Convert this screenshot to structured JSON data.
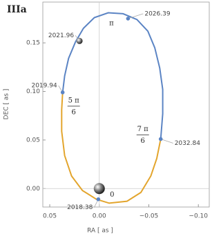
{
  "chart_data": {
    "type": "orbit",
    "title": "IIIa",
    "x_label": "RA [ as ]",
    "y_label": "DEC [ as ]",
    "xlim": [
      0.057,
      -0.111
    ],
    "ylim": [
      -0.019,
      0.192
    ],
    "xticks": [
      0.05,
      {
        "value": 0,
        "label": "0.00"
      },
      {
        "value": -0.05,
        "label": "−0.05"
      },
      {
        "value": -0.1,
        "label": "−0.10"
      }
    ],
    "yticks": [
      {
        "value": 0,
        "label": "0.00"
      },
      0.05,
      {
        "value": 0.1,
        "label": "0.10"
      },
      0.15
    ],
    "origin_lines": true,
    "series": [
      {
        "color": "#5b84c4",
        "x": [
          0.037,
          0.035,
          0.031,
          0.024,
          0.016,
          0.005,
          -0.009,
          -0.024,
          -0.038,
          -0.049,
          -0.056,
          -0.061,
          -0.064,
          -0.064,
          -0.062
        ],
        "y": [
          0.099,
          0.116,
          0.134,
          0.151,
          0.165,
          0.176,
          0.181,
          0.18,
          0.174,
          0.162,
          0.145,
          0.124,
          0.102,
          0.077,
          0.051
        ]
      },
      {
        "color": "#e3a52d",
        "x": [
          -0.062,
          -0.058,
          -0.052,
          -0.042,
          -0.028,
          -0.01,
          0.003,
          0.017,
          0.028,
          0.035,
          0.038,
          0.038,
          0.037
        ],
        "y": [
          0.051,
          0.031,
          0.013,
          -0.004,
          -0.013,
          -0.015,
          -0.011,
          -0.002,
          0.013,
          0.034,
          0.059,
          0.081,
          0.099
        ]
      }
    ],
    "points": [
      {
        "label": "2026.39",
        "x": -0.029,
        "y": 0.175,
        "phase": "π"
      },
      {
        "label": "2021.96",
        "x": 0.02,
        "y": 0.152,
        "marker": "sphere"
      },
      {
        "label": "2019.94",
        "x": 0.037,
        "y": 0.099,
        "phase": {
          "numerator": "5 π",
          "denominator": "6"
        }
      },
      {
        "label": "2032.84",
        "x": -0.062,
        "y": 0.051,
        "phase": {
          "numerator": "7 π",
          "denominator": "6"
        }
      },
      {
        "label": "2018.38",
        "x": 0.001,
        "y": -0.011,
        "phase": "0"
      }
    ],
    "star": {
      "x": 0,
      "y": 0
    }
  }
}
